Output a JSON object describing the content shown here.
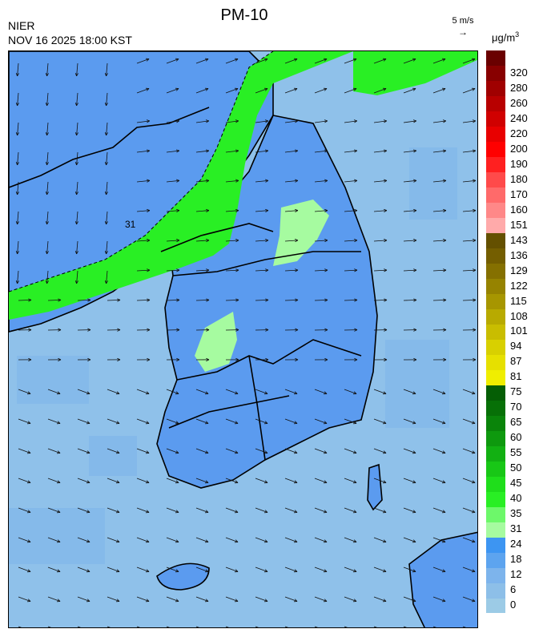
{
  "header": {
    "title": "PM-10",
    "organization": "NIER",
    "timestamp": "NOV 16 2025 18:00 KST",
    "wind_reference": "5 m/s",
    "unit_base": "μg/m",
    "unit_exp": "3"
  },
  "legend": {
    "bins": [
      {
        "label": "0",
        "color": "#9ccbe6"
      },
      {
        "label": "6",
        "color": "#8dbfe8"
      },
      {
        "label": "12",
        "color": "#7db4ec"
      },
      {
        "label": "18",
        "color": "#5da4ef"
      },
      {
        "label": "24",
        "color": "#3d95f2"
      },
      {
        "label": "31",
        "color": "#a6fba0"
      },
      {
        "label": "35",
        "color": "#6df86a"
      },
      {
        "label": "40",
        "color": "#29ef24"
      },
      {
        "label": "45",
        "color": "#1fde1b"
      },
      {
        "label": "50",
        "color": "#18c716"
      },
      {
        "label": "55",
        "color": "#12b012"
      },
      {
        "label": "60",
        "color": "#0e990e"
      },
      {
        "label": "65",
        "color": "#0a840a"
      },
      {
        "label": "70",
        "color": "#077007"
      },
      {
        "label": "75",
        "color": "#055e05"
      },
      {
        "label": "81",
        "color": "#f0ee00"
      },
      {
        "label": "87",
        "color": "#e6e000"
      },
      {
        "label": "94",
        "color": "#d8d000"
      },
      {
        "label": "101",
        "color": "#c9bd00"
      },
      {
        "label": "108",
        "color": "#b8aa00"
      },
      {
        "label": "115",
        "color": "#a79600"
      },
      {
        "label": "122",
        "color": "#968300"
      },
      {
        "label": "129",
        "color": "#857000"
      },
      {
        "label": "136",
        "color": "#745e00"
      },
      {
        "label": "143",
        "color": "#645000"
      },
      {
        "label": "151",
        "color": "#ffaaaa"
      },
      {
        "label": "160",
        "color": "#ff8888"
      },
      {
        "label": "170",
        "color": "#ff6a6a"
      },
      {
        "label": "180",
        "color": "#ff4a4a"
      },
      {
        "label": "190",
        "color": "#ff2020"
      },
      {
        "label": "200",
        "color": "#ff0000"
      },
      {
        "label": "220",
        "color": "#e80000"
      },
      {
        "label": "240",
        "color": "#d00000"
      },
      {
        "label": "260",
        "color": "#b80000"
      },
      {
        "label": "280",
        "color": "#a00000"
      },
      {
        "label": "320",
        "color": "#880000"
      },
      {
        "label": "",
        "color": "#6a0000"
      }
    ]
  },
  "map": {
    "sea_color": "#8fc1ea",
    "land_color": "#5b9bef",
    "plume_color": "#29ef24",
    "plume_light_color": "#a6fba0",
    "contour_label": "31"
  }
}
